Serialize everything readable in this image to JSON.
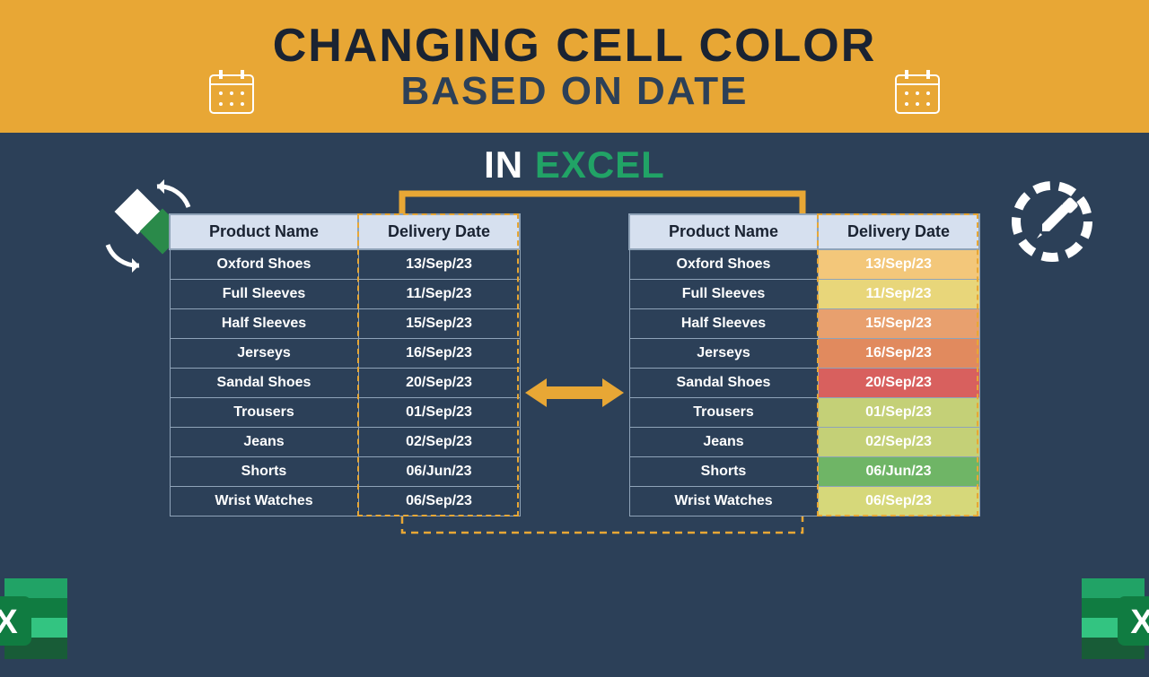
{
  "banner": {
    "line1": "CHANGING CELL COLOR",
    "line2": "BASED ON DATE",
    "bg": "#e8a735",
    "line1_color": "#1a2332",
    "line2_color": "#2c4058"
  },
  "subtitle": {
    "in": "IN",
    "excel": "EXCEL",
    "in_color": "#ffffff",
    "excel_color": "#21a366"
  },
  "background_color": "#2c4058",
  "table_header_bg": "#d6e0ef",
  "table_border": "#8fa3b8",
  "highlight_border": "#e8a735",
  "arrow_color": "#e8a735",
  "columns": [
    "Product Name",
    "Delivery Date"
  ],
  "rows": [
    {
      "product": "Oxford Shoes",
      "date": "13/Sep/23",
      "color": "#f3c77a"
    },
    {
      "product": "Full Sleeves",
      "date": "11/Sep/23",
      "color": "#e8d67a"
    },
    {
      "product": "Half Sleeves",
      "date": "15/Sep/23",
      "color": "#e8a06e"
    },
    {
      "product": "Jerseys",
      "date": "16/Sep/23",
      "color": "#e18a5e"
    },
    {
      "product": "Sandal Shoes",
      "date": "20/Sep/23",
      "color": "#d8605e"
    },
    {
      "product": "Trousers",
      "date": "01/Sep/23",
      "color": "#c4d077"
    },
    {
      "product": "Jeans",
      "date": "02/Sep/23",
      "color": "#c4d077"
    },
    {
      "product": "Shorts",
      "date": "06/Jun/23",
      "color": "#6fb566"
    },
    {
      "product": "Wrist Watches",
      "date": "06/Sep/23",
      "color": "#d6d87a"
    }
  ],
  "excel_green": "#21a366",
  "excel_dark": "#107c41"
}
